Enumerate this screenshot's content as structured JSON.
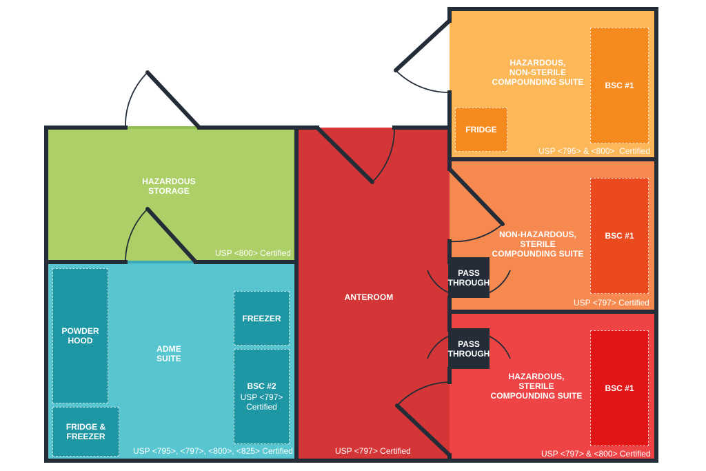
{
  "colors": {
    "wall": "#232c37",
    "storage": "#acd067",
    "adme": "#57c6d0",
    "adme_box": "#1e96a4",
    "anteroom": "#d43637",
    "hnsc": "#fbb758",
    "hnsc_box": "#f58a1e",
    "nhsc": "#f58950",
    "nhsc_box": "#ea4a1e",
    "hsc": "#ef4445",
    "hsc_box": "#e11616"
  },
  "rooms": {
    "hazardous_storage": {
      "name": "HAZARDOUS\nSTORAGE",
      "cert": "USP <800> Certified"
    },
    "adme_suite": {
      "name": "ADME\nSUITE",
      "cert": "USP <795>, <797>, <800>, <825> Certified"
    },
    "anteroom": {
      "name": "ANTEROOM",
      "cert": "USP <797> Certified"
    },
    "hazardous_nonsterile": {
      "name": "HAZARDOUS,\nNON-STERILE\nCOMPOUNDING SUITE",
      "cert": "USP <795> & <800>  Certified"
    },
    "nonhazardous_sterile": {
      "name": "NON-HAZARDOUS,\nSTERILE\nCOMPOUNDING SUITE",
      "cert": "USP <797> Certified"
    },
    "hazardous_sterile": {
      "name": "HAZARDOUS,\nSTERILE\nCOMPOUNDING SUITE",
      "cert": "USP <797> & <800> Certified"
    }
  },
  "equipment": {
    "powder_hood": "POWDER\nHOOD",
    "fridge_freezer": "FRIDGE &\nFREEZER",
    "freezer": "FREEZER",
    "bsc2": "BSC #2",
    "bsc2_cert": "USP <797>\nCertified",
    "fridge": "FRIDGE",
    "bsc1_hnsc": "BSC #1",
    "bsc1_nhsc": "BSC #1",
    "bsc1_hsc": "BSC #1"
  },
  "pass_through": {
    "upper": "PASS\nTHROUGH",
    "lower": "PASS\nTHROUGH"
  }
}
